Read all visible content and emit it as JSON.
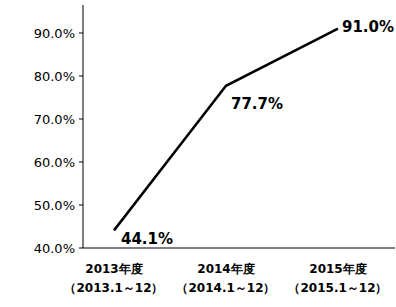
{
  "chart_data": {
    "type": "line",
    "categories": [
      "2013年度\n（2013.1～12）",
      "2014年度\n（2014.1～12）",
      "2015年度\n（2015.1～12）"
    ],
    "values": [
      44.1,
      77.7,
      91.0
    ],
    "value_labels": [
      "44.1%",
      "77.7%",
      "91.0%"
    ],
    "color": "#000000",
    "ylim": [
      40,
      96.5
    ],
    "yticks": [
      {
        "value": 40,
        "label": "40.0%"
      },
      {
        "value": 50,
        "label": "50.0%"
      },
      {
        "value": 60,
        "label": "60.0%"
      },
      {
        "value": 70,
        "label": "70.0%"
      },
      {
        "value": 80,
        "label": "80.0%"
      },
      {
        "value": 90,
        "label": "90.0%"
      }
    ],
    "grid": false,
    "data_labels": true
  }
}
